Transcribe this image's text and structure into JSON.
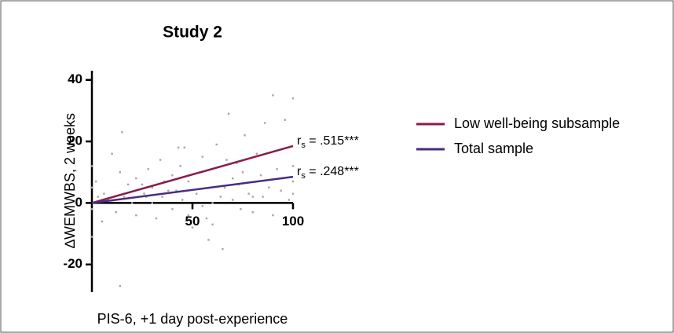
{
  "chart_data": {
    "type": "scatter",
    "title": "Study 2",
    "x_label": "PIS-6, +1 day post-experience",
    "y_label": "∆WEMWBS, 2 weeks",
    "xlim": [
      0,
      100
    ],
    "ylim": [
      -29,
      43
    ],
    "xticks": [
      50,
      100
    ],
    "yticks": [
      -20,
      0,
      20,
      40
    ],
    "point_color": "#a6a6a6",
    "points": {
      "x": [
        0,
        0,
        0,
        0,
        2,
        3,
        5,
        6,
        8,
        10,
        12,
        14,
        15,
        16,
        18,
        20,
        22,
        22,
        25,
        26,
        28,
        30,
        30,
        32,
        34,
        35,
        36,
        38,
        40,
        40,
        42,
        44,
        45,
        46,
        48,
        48,
        50,
        52,
        54,
        55,
        55,
        58,
        60,
        60,
        62,
        64,
        65,
        66,
        68,
        70,
        70,
        72,
        74,
        75,
        76,
        78,
        80,
        80,
        82,
        84,
        85,
        86,
        88,
        90,
        90,
        92,
        94,
        95,
        96,
        98,
        100,
        100,
        100,
        100,
        14,
        27,
        43,
        57,
        67,
        73
      ],
      "values": [
        12,
        -11,
        -2,
        5,
        7,
        2,
        -6,
        3,
        1,
        16,
        -3,
        10,
        23,
        2,
        6,
        0,
        8,
        -4,
        6,
        3,
        11,
        0,
        5,
        -5,
        14,
        2,
        7,
        4,
        9,
        -2,
        4,
        12,
        1,
        18,
        -4,
        7,
        -8,
        3,
        10,
        -1,
        15,
        -12,
        0,
        -7,
        19,
        2,
        -15,
        5,
        29,
        8,
        1,
        13,
        -2,
        10,
        22,
        3,
        2,
        -3,
        16,
        9,
        2,
        26,
        5,
        -4,
        35,
        11,
        4,
        8,
        27,
        1,
        34,
        12,
        7,
        3,
        -27,
        2,
        18,
        -5,
        14,
        6
      ]
    },
    "series": [
      {
        "name": "Low well-being subsample",
        "color": "#8b1a4b",
        "x": [
          0,
          100
        ],
        "values": [
          0,
          18.5
        ],
        "annotation": {
          "prefix": "r",
          "subscript": "s",
          "text": " = .515***"
        }
      },
      {
        "name": "Total sample",
        "color": "#4a2c82",
        "x": [
          0,
          100
        ],
        "values": [
          0,
          8.5
        ],
        "annotation": {
          "prefix": "r",
          "subscript": "s",
          "text": " = .248***"
        }
      }
    ]
  }
}
